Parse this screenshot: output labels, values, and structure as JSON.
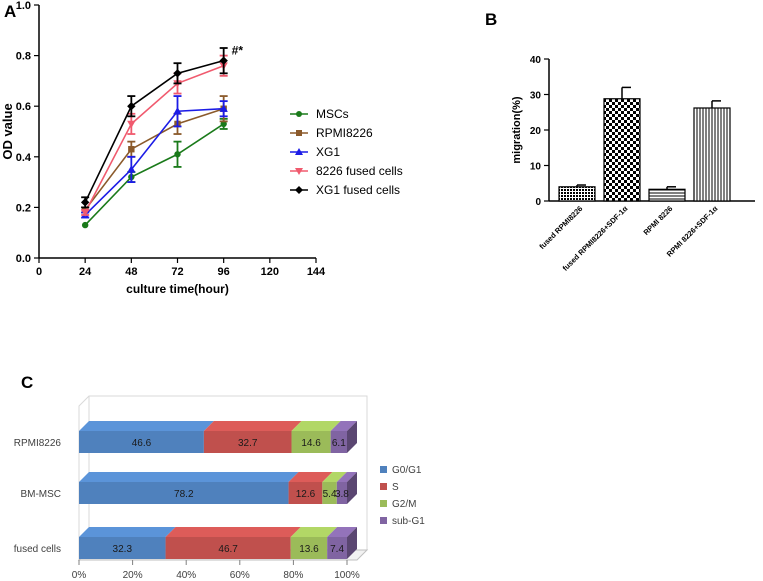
{
  "panels": {
    "a": {
      "letter": "A"
    },
    "b": {
      "letter": "B"
    },
    "c": {
      "letter": "C"
    }
  },
  "chart_data": [
    {
      "panel": "A",
      "type": "line",
      "xlabel": "culture time(hour)",
      "ylabel": "OD value",
      "xlim": [
        0,
        144
      ],
      "ylim": [
        0.0,
        1.0
      ],
      "xticks": [
        0,
        24,
        48,
        72,
        96,
        120,
        144
      ],
      "yticks": [
        0.0,
        0.2,
        0.4,
        0.6,
        0.8,
        1.0
      ],
      "ytick_labels": [
        "0.0",
        "0.2",
        "0.4",
        "0.6",
        "0.8",
        "1.0"
      ],
      "legend": "right",
      "annotation": "#*",
      "x": [
        24,
        48,
        72,
        96
      ],
      "series": [
        {
          "name": "MSCs",
          "color": "#1a7a1a",
          "marker": "circle",
          "values": [
            0.13,
            0.32,
            0.41,
            0.53
          ],
          "errors": [
            0.0,
            0.02,
            0.05,
            0.02
          ]
        },
        {
          "name": "RPMI8226",
          "color": "#8b5a2b",
          "marker": "square",
          "values": [
            0.19,
            0.43,
            0.53,
            0.59
          ],
          "errors": [
            0.01,
            0.03,
            0.04,
            0.05
          ]
        },
        {
          "name": "XG1",
          "color": "#1c1ce6",
          "marker": "triangle",
          "values": [
            0.17,
            0.35,
            0.58,
            0.59
          ],
          "errors": [
            0.01,
            0.05,
            0.06,
            0.03
          ]
        },
        {
          "name": "8226 fused cells",
          "color": "#f05a6e",
          "marker": "triangle-down",
          "values": [
            0.18,
            0.53,
            0.69,
            0.76
          ],
          "errors": [
            0.01,
            0.04,
            0.04,
            0.04
          ]
        },
        {
          "name": "XG1 fused cells",
          "color": "#000000",
          "marker": "diamond",
          "values": [
            0.22,
            0.6,
            0.73,
            0.78
          ],
          "errors": [
            0.02,
            0.04,
            0.04,
            0.05
          ]
        }
      ]
    },
    {
      "panel": "B",
      "type": "bar",
      "ylabel": "migration(%)",
      "ylim": [
        0,
        40
      ],
      "yticks": [
        0,
        10,
        20,
        30,
        40
      ],
      "categories": [
        "fused RPMI8226",
        "fused RPMI8226+SDF-1α",
        "RPMI 8226",
        "RPMI 8226+SDF-1α"
      ],
      "values": [
        4.0,
        28.8,
        3.3,
        26.2
      ],
      "errors": [
        0.5,
        3.2,
        0.7,
        2.0
      ],
      "patterns": [
        "dense-crosshatch",
        "checker",
        "horizontal-lines",
        "vertical-lines"
      ]
    },
    {
      "panel": "C",
      "type": "bar",
      "orientation": "horizontal",
      "stacked": true,
      "categories": [
        "RPMI8226",
        "BM-MSC",
        "fused cells"
      ],
      "xticks": [
        0,
        20,
        40,
        60,
        80,
        100
      ],
      "xtick_labels": [
        "0%",
        "20%",
        "40%",
        "60%",
        "80%",
        "100%"
      ],
      "legend": "right",
      "series": [
        {
          "name": "G0/G1",
          "color": "#4f81bd",
          "values": [
            46.6,
            78.2,
            32.3
          ],
          "labels": [
            "46.6",
            "78.2",
            "32.3"
          ]
        },
        {
          "name": "S",
          "color": "#c0504d",
          "values": [
            32.7,
            12.6,
            46.7
          ],
          "labels": [
            "32.7",
            "12.6",
            "46.7"
          ]
        },
        {
          "name": "G2/M",
          "color": "#9bbb59",
          "values": [
            14.6,
            5.4,
            13.6
          ],
          "labels": [
            "14.6",
            "5.4",
            "13.6"
          ]
        },
        {
          "name": "sub-G1",
          "color": "#8064a2",
          "values": [
            6.1,
            3.8,
            7.4
          ],
          "labels": [
            "6.1",
            "3.8",
            "7.4"
          ]
        }
      ]
    }
  ]
}
